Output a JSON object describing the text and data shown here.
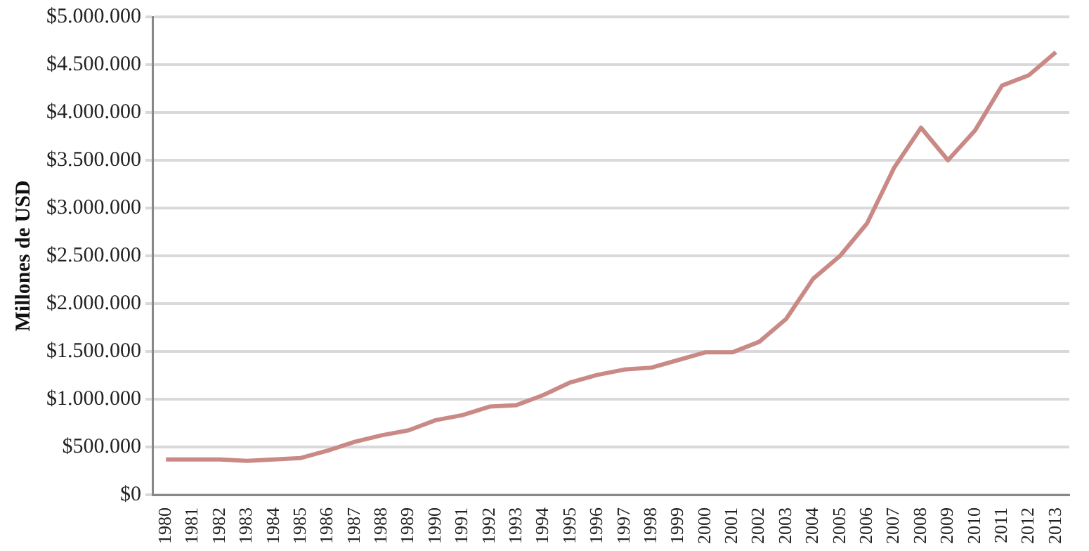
{
  "chart_data": {
    "type": "line",
    "ylabel": "Millones de USD",
    "categories": [
      "1980",
      "1981",
      "1982",
      "1983",
      "1984",
      "1985",
      "1986",
      "1987",
      "1988",
      "1989",
      "1990",
      "1991",
      "1992",
      "1993",
      "1994",
      "1995",
      "1996",
      "1997",
      "1998",
      "1999",
      "2000",
      "2001",
      "2002",
      "2003",
      "2004",
      "2005",
      "2006",
      "2007",
      "2008",
      "2009",
      "2010",
      "2011",
      "2012",
      "2013"
    ],
    "series": [
      {
        "color": "#c98a86",
        "values": [
          370000,
          370000,
          370000,
          355000,
          370000,
          385000,
          463000,
          554000,
          622000,
          675000,
          780000,
          834000,
          922000,
          938000,
          1044000,
          1176000,
          1255000,
          1310000,
          1330000,
          1410000,
          1490000,
          1490000,
          1600000,
          1840000,
          2260000,
          2500000,
          2840000,
          3420000,
          3840000,
          3500000,
          3810000,
          4280000,
          4390000,
          4630000
        ]
      }
    ],
    "ylim": [
      0,
      5000000
    ],
    "yticks": [
      {
        "value": 0,
        "label": "$0"
      },
      {
        "value": 500000,
        "label": "$500.000"
      },
      {
        "value": 1000000,
        "label": "$1.000.000"
      },
      {
        "value": 1500000,
        "label": "$1.500.000"
      },
      {
        "value": 2000000,
        "label": "$2.000.000"
      },
      {
        "value": 2500000,
        "label": "$2.500.000"
      },
      {
        "value": 3000000,
        "label": "$3.000.000"
      },
      {
        "value": 3500000,
        "label": "$3.500.000"
      },
      {
        "value": 4000000,
        "label": "$4.000.000"
      },
      {
        "value": 4500000,
        "label": "$4.500.000"
      },
      {
        "value": 5000000,
        "label": "$5.000.000"
      }
    ],
    "grid": "y",
    "legend": false,
    "marker": "none",
    "line_style": "solid"
  }
}
